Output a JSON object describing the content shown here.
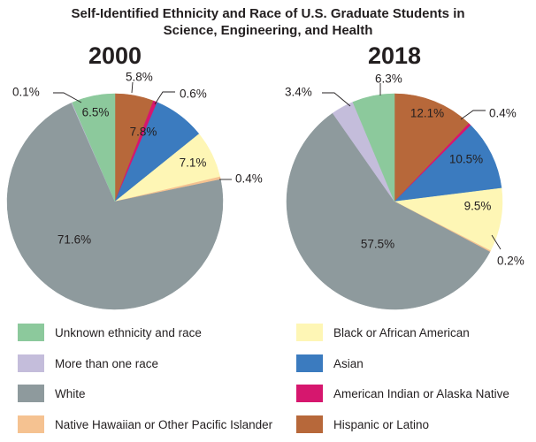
{
  "title": {
    "line1": "Self-Identified Ethnicity and Race of U.S. Graduate Students in",
    "line2": "Science, Engineering, and Health"
  },
  "chart_data": {
    "type": "pie",
    "title": "Self-Identified Ethnicity and Race of U.S. Graduate Students in Science, Engineering, and Health",
    "legend_placement": "bottom",
    "categories": [
      "Hispanic or Latino",
      "American Indian or Alaska Native",
      "Asian",
      "Black or African American",
      "Native Hawaiian or Other Pacific Islander",
      "White",
      "More than one race",
      "Unknown ethnicity and race"
    ],
    "colors": [
      "#b7683a",
      "#d6176e",
      "#3b7bbf",
      "#fef6b5",
      "#f5c291",
      "#8e9a9d",
      "#c4bddb",
      "#8cc99c"
    ],
    "series": [
      {
        "name": "2000",
        "values": [
          5.8,
          0.6,
          7.8,
          7.1,
          0.4,
          71.6,
          0.1,
          6.5
        ],
        "labels": [
          "5.8%",
          "0.6%",
          "7.8%",
          "7.1%",
          "0.4%",
          "71.6%",
          "0.1%",
          "6.5%"
        ]
      },
      {
        "name": "2018",
        "values": [
          12.1,
          0.4,
          10.5,
          9.5,
          0.2,
          57.5,
          3.4,
          6.3
        ],
        "labels": [
          "12.1%",
          "0.4%",
          "10.5%",
          "9.5%",
          "0.2%",
          "57.5%",
          "3.4%",
          "6.3%"
        ]
      }
    ]
  },
  "legend": {
    "items": [
      {
        "label": "Unknown ethnicity and race",
        "color": "#8cc99c"
      },
      {
        "label": "More than one race",
        "color": "#c4bddb"
      },
      {
        "label": "White",
        "color": "#8e9a9d"
      },
      {
        "label": "Native Hawaiian or Other Pacific Islander",
        "color": "#f5c291"
      },
      {
        "label": "Black or African American",
        "color": "#fef6b5"
      },
      {
        "label": "Asian",
        "color": "#3b7bbf"
      },
      {
        "label": "American Indian or Alaska Native",
        "color": "#d6176e"
      },
      {
        "label": "Hispanic or Latino",
        "color": "#b7683a"
      }
    ]
  }
}
